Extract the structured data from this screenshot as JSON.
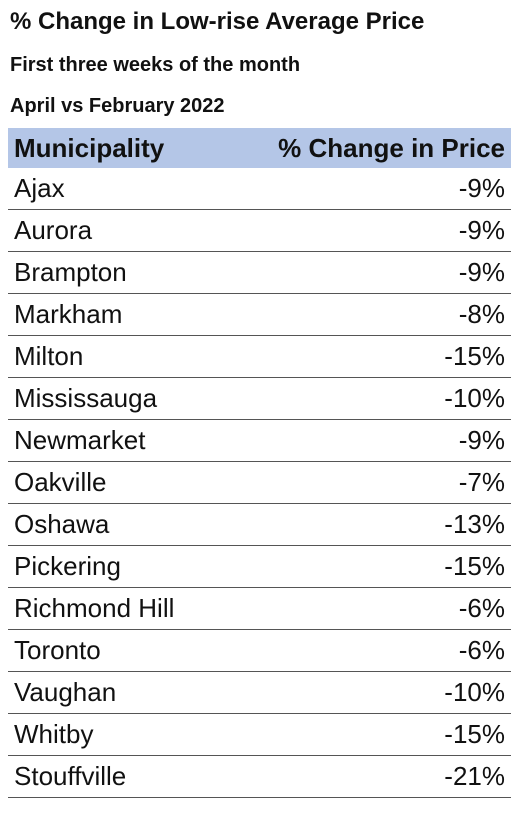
{
  "title": "% Change in Low-rise Average Price",
  "subtitle_1": "First three weeks of the month",
  "subtitle_2": "April vs February 2022",
  "table": {
    "headers": [
      "Municipality",
      "% Change in Price"
    ],
    "rows": [
      {
        "municipality": "Ajax",
        "change": "-9%"
      },
      {
        "municipality": "Aurora",
        "change": "-9%"
      },
      {
        "municipality": "Brampton",
        "change": "-9%"
      },
      {
        "municipality": "Markham",
        "change": "-8%"
      },
      {
        "municipality": "Milton",
        "change": "-15%"
      },
      {
        "municipality": "Mississauga",
        "change": "-10%"
      },
      {
        "municipality": "Newmarket",
        "change": "-9%"
      },
      {
        "municipality": "Oakville",
        "change": "-7%"
      },
      {
        "municipality": "Oshawa",
        "change": "-13%"
      },
      {
        "municipality": "Pickering",
        "change": "-15%"
      },
      {
        "municipality": "Richmond Hill",
        "change": "-6%"
      },
      {
        "municipality": "Toronto",
        "change": "-6%"
      },
      {
        "municipality": "Vaughan",
        "change": "-10%"
      },
      {
        "municipality": "Whitby",
        "change": "-15%"
      },
      {
        "municipality": "Stouffville",
        "change": "-21%"
      }
    ]
  },
  "colors": {
    "header_background": "#b4c6e7",
    "row_divider": "#555555",
    "text": "#111111"
  }
}
